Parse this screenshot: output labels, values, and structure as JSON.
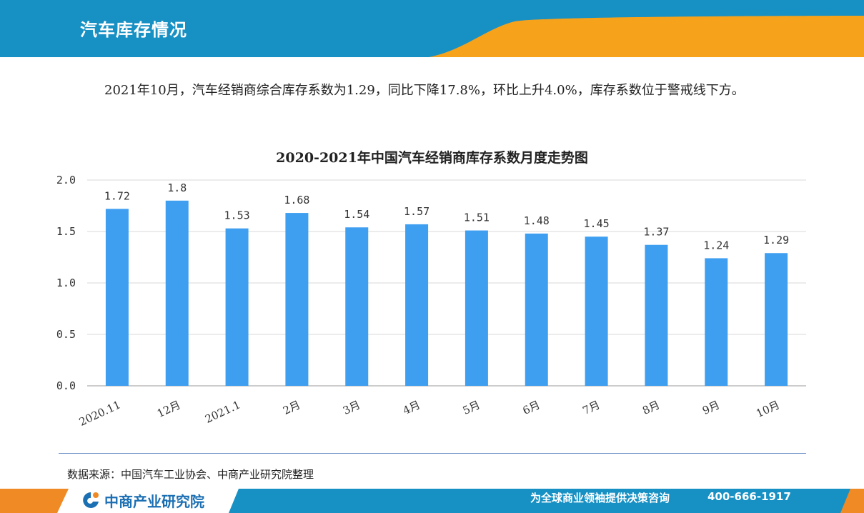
{
  "header": {
    "title": "汽车库存情况",
    "colors": {
      "primary": "#1790c4",
      "accent": "#f7a21b"
    }
  },
  "description": "2021年10月，汽车经销商综合库存系数为1.29，同比下降17.8%，环比上升4.0%，库存系数位于警戒线下方。",
  "chart_data": {
    "type": "bar",
    "title": "2020-2021年中国汽车经销商库存系数月度走势图",
    "categories": [
      "2020.11",
      "12月",
      "2021.1",
      "2月",
      "3月",
      "4月",
      "5月",
      "6月",
      "7月",
      "8月",
      "9月",
      "10月"
    ],
    "values": [
      1.72,
      1.8,
      1.53,
      1.68,
      1.54,
      1.57,
      1.51,
      1.48,
      1.45,
      1.37,
      1.24,
      1.29
    ],
    "value_labels": [
      "1.72",
      "1.8",
      "1.53",
      "1.68",
      "1.54",
      "1.57",
      "1.51",
      "1.48",
      "1.45",
      "1.37",
      "1.24",
      "1.29"
    ],
    "y_ticks": [
      "0.0",
      "0.5",
      "1.0",
      "1.5",
      "2.0"
    ],
    "ylim": [
      0,
      2.0
    ],
    "xlabel": "",
    "ylabel": "",
    "grid": true,
    "bar_color": "#3e9ff0"
  },
  "source": "数据来源：中国汽车工业协会、中商产业研究院整理",
  "footer": {
    "logo_text": "中商产业研究院",
    "slogan": "为全球商业领袖提供决策咨询",
    "phone": "400-666-1917",
    "colors": {
      "primary": "#1790c4",
      "accent": "#f08a24"
    }
  }
}
